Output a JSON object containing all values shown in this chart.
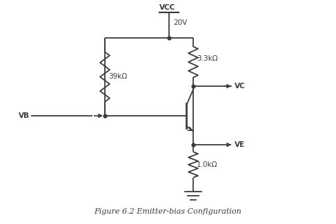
{
  "title": "Figure 6.2 Emitter-bias Configuration",
  "vcc_label": "VCC",
  "vcc_voltage": "20V",
  "r1_label": "39kΩ",
  "r2_label": "3.3kΩ",
  "re_label": "1.0kΩ",
  "vb_label": "VB",
  "vc_label": "VC",
  "ve_label": "VE",
  "line_color": "#3a3a3a",
  "bg_color": "#ffffff",
  "line_width": 1.3,
  "fig_width": 4.87,
  "fig_height": 3.25,
  "dpi": 100
}
